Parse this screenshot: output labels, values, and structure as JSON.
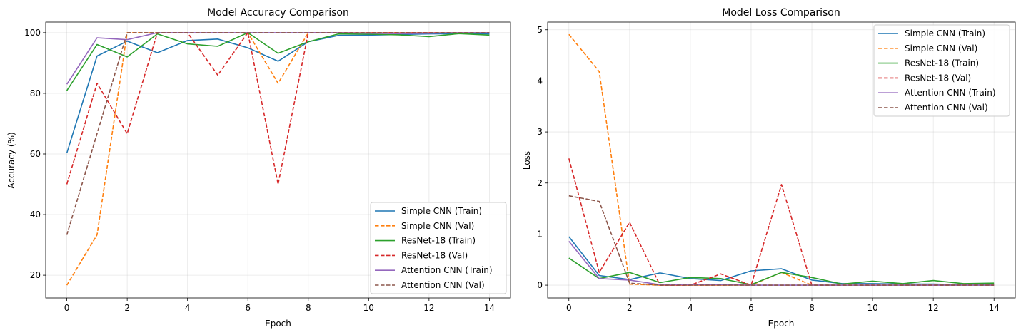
{
  "colors": {
    "blue": "#1f77b4",
    "orange": "#ff7f0e",
    "green": "#2ca02c",
    "red": "#d62728",
    "purple": "#9467bd",
    "brown": "#8c564b"
  },
  "chart_data": [
    {
      "type": "line",
      "title": "Model Accuracy Comparison",
      "xlabel": "Epoch",
      "ylabel": "Accuracy (%)",
      "xlim": [
        -0.7,
        14.7
      ],
      "ylim": [
        12.5,
        103.5
      ],
      "xticks": [
        0,
        2,
        4,
        6,
        8,
        10,
        12,
        14
      ],
      "yticks": [
        20,
        40,
        60,
        80,
        100
      ],
      "grid": true,
      "legend_position": "lower-right",
      "x": [
        0,
        1,
        2,
        3,
        4,
        5,
        6,
        7,
        8,
        9,
        10,
        11,
        12,
        13,
        14
      ],
      "series": [
        {
          "name": "Simple CNN (Train)",
          "color": "#1f77b4",
          "dashed": false,
          "values": [
            60.3,
            92.3,
            97.2,
            93.4,
            97.4,
            97.9,
            95.0,
            90.6,
            97.0,
            99.1,
            99.2,
            99.4,
            99.6,
            99.7,
            99.6
          ]
        },
        {
          "name": "Simple CNN (Val)",
          "color": "#ff7f0e",
          "dashed": true,
          "values": [
            16.7,
            33.3,
            100,
            100,
            100,
            100,
            100,
            83.3,
            100,
            100,
            100,
            100,
            100,
            100,
            100
          ]
        },
        {
          "name": "ResNet-18 (Train)",
          "color": "#2ca02c",
          "dashed": false,
          "values": [
            80.9,
            96.1,
            92.0,
            99.6,
            96.3,
            95.5,
            100,
            93.2,
            97.0,
            99.6,
            99.5,
            99.3,
            98.7,
            99.7,
            99.2
          ]
        },
        {
          "name": "ResNet-18 (Val)",
          "color": "#d62728",
          "dashed": true,
          "values": [
            50.0,
            83.3,
            66.7,
            100,
            100,
            86.0,
            100,
            50.0,
            100,
            100,
            100,
            100,
            100,
            100,
            100
          ]
        },
        {
          "name": "Attention CNN (Train)",
          "color": "#9467bd",
          "dashed": false,
          "values": [
            83.0,
            98.3,
            97.7,
            100,
            100,
            100,
            100,
            100,
            100,
            100,
            99.8,
            99.7,
            99.8,
            100,
            100
          ]
        },
        {
          "name": "Attention CNN (Val)",
          "color": "#8c564b",
          "dashed": true,
          "values": [
            33.3,
            66.7,
            100,
            100,
            100,
            100,
            100,
            100,
            100,
            100,
            100,
            100,
            100,
            100,
            100
          ]
        }
      ]
    },
    {
      "type": "line",
      "title": "Model Loss Comparison",
      "xlabel": "Epoch",
      "ylabel": "Loss",
      "xlim": [
        -0.7,
        14.7
      ],
      "ylim": [
        -0.25,
        5.15
      ],
      "xticks": [
        0,
        2,
        4,
        6,
        8,
        10,
        12,
        14
      ],
      "yticks": [
        0,
        1,
        2,
        3,
        4,
        5
      ],
      "grid": true,
      "legend_position": "upper-right",
      "x": [
        0,
        1,
        2,
        3,
        4,
        5,
        6,
        7,
        8,
        9,
        10,
        11,
        12,
        13,
        14
      ],
      "series": [
        {
          "name": "Simple CNN (Train)",
          "color": "#1f77b4",
          "dashed": false,
          "values": [
            0.95,
            0.19,
            0.11,
            0.24,
            0.13,
            0.09,
            0.28,
            0.32,
            0.1,
            0.03,
            0.03,
            0.02,
            0.02,
            0.01,
            0.02
          ]
        },
        {
          "name": "Simple CNN (Val)",
          "color": "#ff7f0e",
          "dashed": true,
          "values": [
            4.91,
            4.18,
            0.02,
            0.0,
            0.0,
            0.0,
            0.0,
            0.25,
            0.0,
            0.0,
            0.0,
            0.0,
            0.0,
            0.0,
            0.0
          ]
        },
        {
          "name": "ResNet-18 (Train)",
          "color": "#2ca02c",
          "dashed": false,
          "values": [
            0.53,
            0.13,
            0.25,
            0.05,
            0.15,
            0.13,
            0.01,
            0.25,
            0.15,
            0.02,
            0.08,
            0.03,
            0.09,
            0.03,
            0.04
          ]
        },
        {
          "name": "ResNet-18 (Val)",
          "color": "#d62728",
          "dashed": true,
          "values": [
            2.48,
            0.25,
            1.23,
            0.0,
            0.0,
            0.22,
            0.0,
            1.97,
            0.0,
            0.0,
            0.0,
            0.0,
            0.0,
            0.0,
            0.0
          ]
        },
        {
          "name": "Attention CNN (Train)",
          "color": "#9467bd",
          "dashed": false,
          "values": [
            0.86,
            0.13,
            0.1,
            0.01,
            0.01,
            0.01,
            0.0,
            0.0,
            0.0,
            0.0,
            0.0,
            0.0,
            0.0,
            0.0,
            0.0
          ]
        },
        {
          "name": "Attention CNN (Val)",
          "color": "#8c564b",
          "dashed": true,
          "values": [
            1.75,
            1.64,
            0.04,
            0.0,
            0.0,
            0.0,
            0.0,
            0.0,
            0.0,
            0.0,
            0.0,
            0.0,
            0.0,
            0.0,
            0.0
          ]
        }
      ]
    }
  ]
}
